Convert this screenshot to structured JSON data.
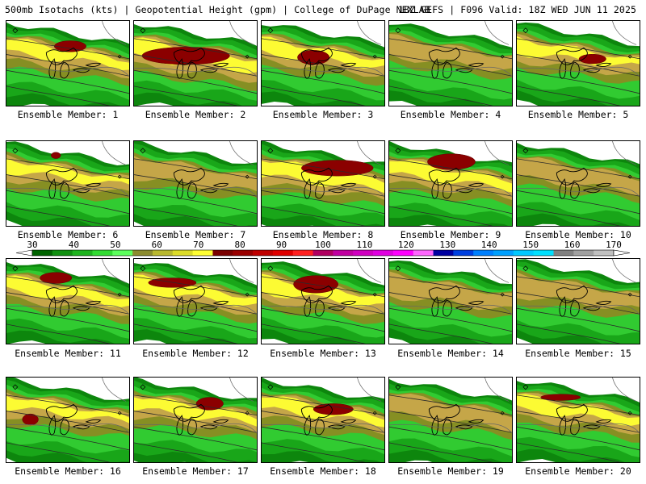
{
  "header": {
    "left": "500mb Isotachs (kts) | Geopotential Height (gpm) | College of DuPage NEXLAB",
    "right": "18Z GEFS | F096 Valid: 18Z WED JUN 11 2025"
  },
  "panels": [
    {
      "label": "Ensemble Member: 1",
      "jet": {
        "cx": 80,
        "cy": 32,
        "rx": 20,
        "ry": 7
      },
      "amp": 1.0
    },
    {
      "label": "Ensemble Member: 2",
      "jet": {
        "cx": 65,
        "cy": 44,
        "rx": 55,
        "ry": 11
      },
      "amp": 1.3
    },
    {
      "label": "Ensemble Member: 3",
      "jet": {
        "cx": 65,
        "cy": 46,
        "rx": 20,
        "ry": 9
      },
      "amp": 1.0
    },
    {
      "label": "Ensemble Member: 4",
      "jet": null,
      "amp": 0.7
    },
    {
      "label": "Ensemble Member: 5",
      "jet": {
        "cx": 95,
        "cy": 48,
        "rx": 17,
        "ry": 6
      },
      "amp": 1.0
    },
    {
      "label": "Ensemble Member: 6",
      "jet": {
        "cx": 62,
        "cy": 18,
        "rx": 6,
        "ry": 4
      },
      "amp": 0.9
    },
    {
      "label": "Ensemble Member: 7",
      "jet": null,
      "amp": 0.8
    },
    {
      "label": "Ensemble Member: 8",
      "jet": {
        "cx": 95,
        "cy": 34,
        "rx": 45,
        "ry": 10
      },
      "amp": 1.2
    },
    {
      "label": "Ensemble Member: 9",
      "jet": {
        "cx": 78,
        "cy": 26,
        "rx": 30,
        "ry": 10
      },
      "amp": 1.1
    },
    {
      "label": "Ensemble Member: 10",
      "jet": null,
      "amp": 0.8
    },
    {
      "label": "Ensemble Member: 11",
      "jet": {
        "cx": 62,
        "cy": 24,
        "rx": 20,
        "ry": 7
      },
      "amp": 1.0
    },
    {
      "label": "Ensemble Member: 12",
      "jet": {
        "cx": 48,
        "cy": 30,
        "rx": 30,
        "ry": 6
      },
      "amp": 1.0
    },
    {
      "label": "Ensemble Member: 13",
      "jet": {
        "cx": 68,
        "cy": 32,
        "rx": 28,
        "ry": 11
      },
      "amp": 1.1
    },
    {
      "label": "Ensemble Member: 14",
      "jet": null,
      "amp": 0.8
    },
    {
      "label": "Ensemble Member: 15",
      "jet": null,
      "amp": 0.8
    },
    {
      "label": "Ensemble Member: 16",
      "jet": {
        "cx": 30,
        "cy": 53,
        "rx": 10,
        "ry": 7
      },
      "amp": 0.9
    },
    {
      "label": "Ensemble Member: 17",
      "jet": {
        "cx": 95,
        "cy": 33,
        "rx": 17,
        "ry": 8
      },
      "amp": 1.0
    },
    {
      "label": "Ensemble Member: 18",
      "jet": {
        "cx": 90,
        "cy": 40,
        "rx": 25,
        "ry": 7
      },
      "amp": 1.0
    },
    {
      "label": "Ensemble Member: 19",
      "jet": null,
      "amp": 0.8
    },
    {
      "label": "Ensemble Member: 20",
      "jet": {
        "cx": 55,
        "cy": 25,
        "rx": 25,
        "ry": 4
      },
      "amp": 1.0
    }
  ],
  "colorbar": {
    "labels": [
      "30",
      "40",
      "50",
      "60",
      "70",
      "80",
      "90",
      "100",
      "110",
      "120",
      "130",
      "140",
      "150",
      "160",
      "170"
    ],
    "colors": [
      "#006400",
      "#109010",
      "#1eb41e",
      "#32dc32",
      "#5cff5c",
      "#8b8b2e",
      "#b8b82e",
      "#dcdc28",
      "#ffff32",
      "#7a0000",
      "#9a0000",
      "#c00000",
      "#e00000",
      "#ff2020",
      "#b00060",
      "#c000a0",
      "#d000c0",
      "#e000e0",
      "#ff00ff",
      "#ff66ff",
      "#0000a0",
      "#0040e0",
      "#0080ff",
      "#00a0ff",
      "#00c8ff",
      "#00e0ff",
      "#808080",
      "#a0a0a0",
      "#c0c0c0"
    ]
  },
  "palette": {
    "green_dark": "#008000",
    "green_mid": "#1aa81a",
    "green_light": "#33cc33",
    "olive": "#8b8b23",
    "tan": "#c8a84b",
    "yellow": "#ffff33",
    "darkred": "#8b0000",
    "border": "#000000"
  }
}
